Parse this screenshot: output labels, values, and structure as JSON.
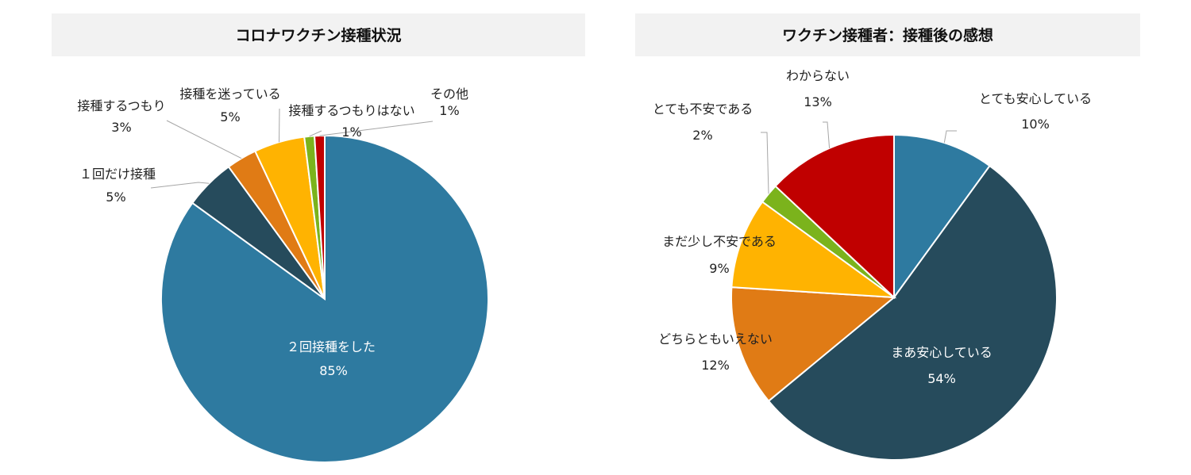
{
  "chart_data": [
    {
      "type": "pie",
      "title": "コロナワクチン接種状況",
      "colors": [
        "#2e7aa0",
        "#264b5c",
        "#e07b15",
        "#ffb301",
        "#7bb31c",
        "#c00000"
      ],
      "slices": [
        {
          "label": "２回接種をした",
          "value": 85,
          "value_label": "85%"
        },
        {
          "label": "１回だけ接種",
          "value": 5,
          "value_label": "5%"
        },
        {
          "label": "接種するつもり",
          "value": 3,
          "value_label": "3%"
        },
        {
          "label": "接種を迷っている",
          "value": 5,
          "value_label": "5%"
        },
        {
          "label": "接種するつもりはない",
          "value": 1,
          "value_label": "1%"
        },
        {
          "label": "その他",
          "value": 1,
          "value_label": "1%"
        }
      ]
    },
    {
      "type": "pie",
      "title": "ワクチン接種者：接種後の感想",
      "colors": [
        "#2e7aa0",
        "#264b5c",
        "#e07b15",
        "#ffb301",
        "#7bb31c",
        "#c00000"
      ],
      "slices": [
        {
          "label": "とても安心している",
          "value": 10,
          "value_label": "10%"
        },
        {
          "label": "まあ安心している",
          "value": 54,
          "value_label": "54%"
        },
        {
          "label": "どちらともいえない",
          "value": 12,
          "value_label": "12%"
        },
        {
          "label": "まだ少し不安である",
          "value": 9,
          "value_label": "9%"
        },
        {
          "label": "とても不安である",
          "value": 2,
          "value_label": "2%"
        },
        {
          "label": "わからない",
          "value": 13,
          "value_label": "13%"
        }
      ]
    }
  ]
}
